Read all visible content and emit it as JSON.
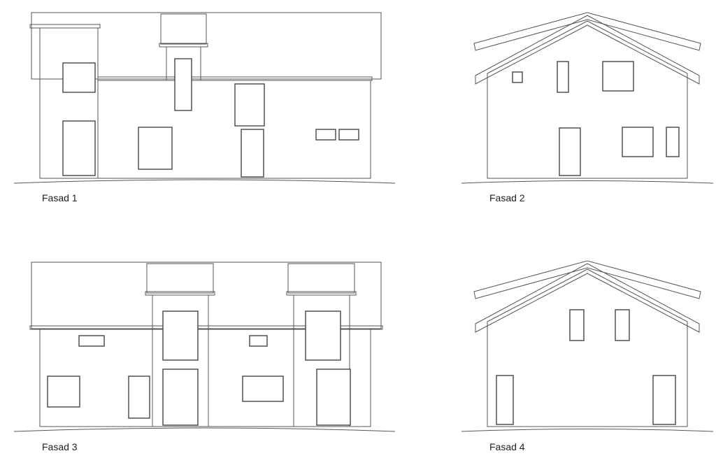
{
  "facades": [
    {
      "label": "Fasad 1"
    },
    {
      "label": "Fasad 2"
    },
    {
      "label": "Fasad 3"
    },
    {
      "label": "Fasad 4"
    }
  ]
}
